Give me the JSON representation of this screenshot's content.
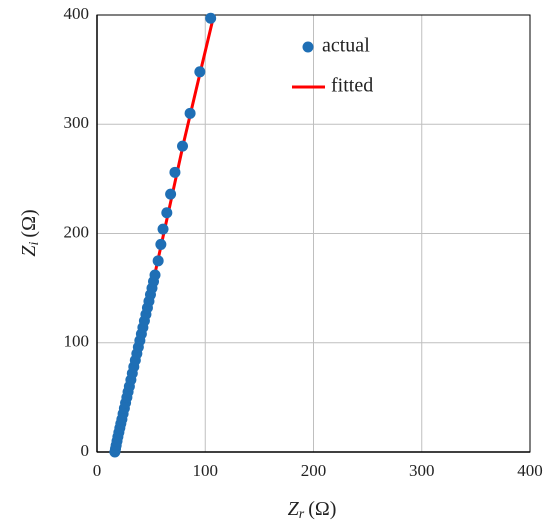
{
  "chart_data": {
    "type": "scatter",
    "x_label": {
      "symbol": "Z",
      "subscript": "r",
      "unit": "(Ω)"
    },
    "y_label": {
      "symbol": "Z",
      "subscript": "i",
      "unit": "(Ω)"
    },
    "xlim": [
      0,
      400
    ],
    "ylim": [
      0,
      400
    ],
    "xticks": [
      0,
      100,
      200,
      300,
      400
    ],
    "yticks": [
      0,
      100,
      200,
      300,
      400
    ],
    "grid": true,
    "legend": "upper right",
    "series": [
      {
        "name": "actual",
        "color": "#1f6fb5",
        "kind": "points",
        "x": [
          16.5,
          17.1,
          17.7,
          18.5,
          19.3,
          20.2,
          21.1,
          22,
          23,
          24.1,
          25.3,
          26.4,
          27.6,
          28.7,
          29.9,
          31.3,
          32.6,
          34,
          35.4,
          36.8,
          38.2,
          39.6,
          41,
          42.4,
          43.8,
          45.2,
          46.6,
          48,
          49.4,
          50.8,
          52.2,
          53.6,
          56.5,
          59,
          61,
          64.5,
          68,
          72,
          79,
          86,
          95,
          105
        ],
        "values": [
          0,
          3,
          6,
          10,
          14,
          18,
          22,
          26,
          30,
          35,
          40,
          45,
          50,
          55,
          60,
          66,
          72,
          78,
          84,
          90,
          96,
          102,
          108,
          114,
          120,
          126,
          132,
          138,
          144,
          150,
          156,
          162,
          175,
          190,
          204,
          219,
          236,
          256,
          280,
          310,
          348,
          397
        ]
      },
      {
        "name": "fitted",
        "color": "#ff0000",
        "kind": "line",
        "x": [
          16.5,
          18,
          25,
          35,
          45,
          55,
          65,
          80,
          95,
          108
        ],
        "values": [
          0,
          5,
          35,
          80,
          125,
          170,
          215,
          283,
          346,
          400
        ]
      }
    ]
  }
}
